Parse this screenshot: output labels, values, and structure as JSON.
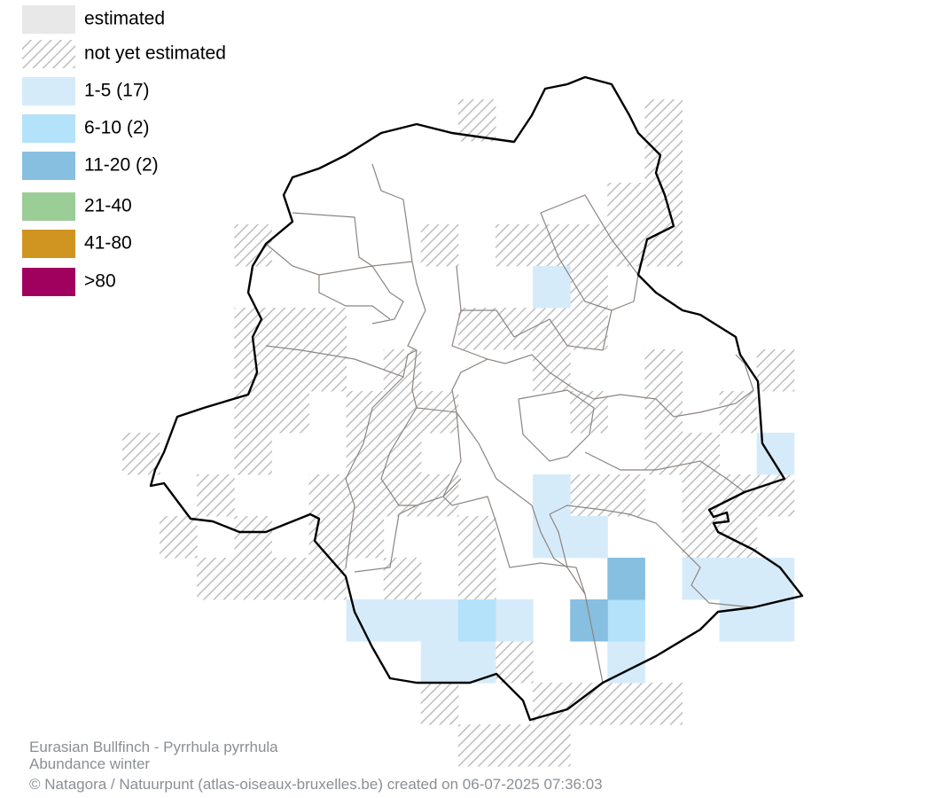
{
  "legend": [
    {
      "label": "estimated",
      "color": "#e8e8e8"
    },
    {
      "label": "not yet estimated"
    },
    {
      "label": "1-5 (17)",
      "color": "#d6ebfa"
    },
    {
      "label": "6-10 (2)",
      "color": "#b3e2fa"
    },
    {
      "label": "11-20 (2)",
      "color": "#86bfdf"
    },
    {
      "label": "21-40",
      "color": "#9bcd96"
    },
    {
      "label": "41-80",
      "color": "#d09420"
    },
    {
      "label": ">80",
      "color": "#a0005e"
    }
  ],
  "footer": {
    "species": "Eurasian Bullfinch - Pyrrhula pyrrhula",
    "subtitle": "Abundance winter",
    "credit": "© Natagora / Natuurpunt (atlas-oiseaux-bruxelles.be) created on 06-07-2025 07:36:03"
  }
}
